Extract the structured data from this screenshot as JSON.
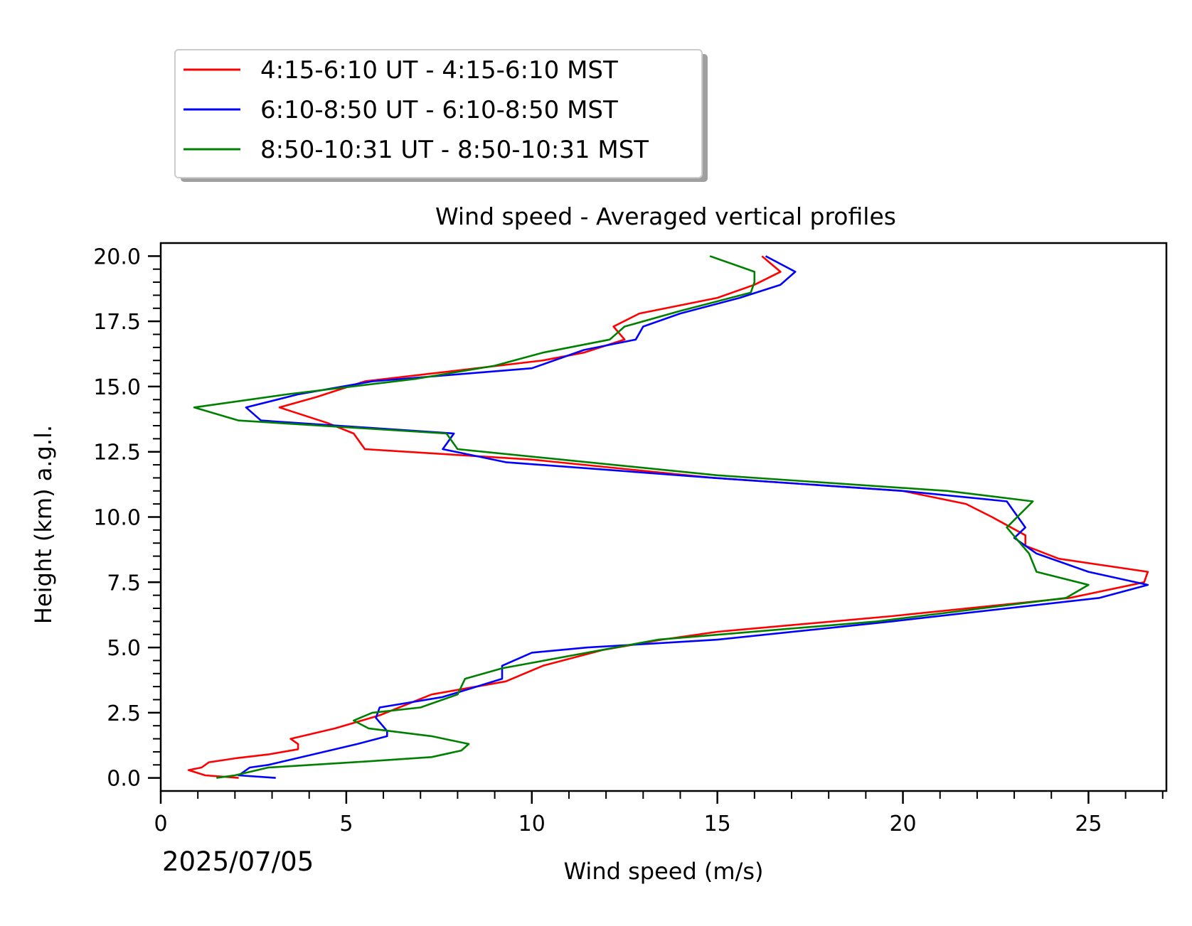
{
  "chart_data": {
    "type": "line",
    "title": "Wind speed - Averaged vertical profiles",
    "xlabel": "Wind speed (m/s)",
    "ylabel": "Height (km) a.g.l.",
    "date_label": "2025/07/05",
    "xlim": [
      0,
      27.1
    ],
    "ylim": [
      -0.5,
      20.5
    ],
    "xticks": [
      0,
      5,
      10,
      15,
      20,
      25
    ],
    "xtick_labels": [
      "0",
      "5",
      "10",
      "15",
      "20",
      "25"
    ],
    "yticks": [
      0.0,
      2.5,
      5.0,
      7.5,
      10.0,
      12.5,
      15.0,
      17.5,
      20.0
    ],
    "ytick_labels": [
      "0.0",
      "2.5",
      "5.0",
      "7.5",
      "10.0",
      "12.5",
      "15.0",
      "17.5",
      "20.0"
    ],
    "grid": false,
    "legend_position": "above-left",
    "series": [
      {
        "name": "4:15-6:10 UT - 4:15-6:10 MST",
        "color": "#ff0000",
        "points": [
          [
            2.1,
            0.0
          ],
          [
            1.2,
            0.1
          ],
          [
            0.75,
            0.3
          ],
          [
            1.1,
            0.4
          ],
          [
            1.3,
            0.6
          ],
          [
            2.0,
            0.75
          ],
          [
            2.9,
            0.9
          ],
          [
            3.7,
            1.1
          ],
          [
            3.7,
            1.3
          ],
          [
            3.5,
            1.5
          ],
          [
            4.7,
            1.9
          ],
          [
            5.9,
            2.4
          ],
          [
            7.3,
            3.2
          ],
          [
            9.3,
            3.7
          ],
          [
            10.3,
            4.3
          ],
          [
            11.9,
            4.9
          ],
          [
            13.5,
            5.3
          ],
          [
            15.0,
            5.6
          ],
          [
            19.7,
            6.2
          ],
          [
            24.5,
            6.9
          ],
          [
            26.5,
            7.5
          ],
          [
            26.6,
            7.9
          ],
          [
            24.2,
            8.4
          ],
          [
            23.3,
            8.9
          ],
          [
            23.3,
            9.3
          ],
          [
            22.4,
            10.0
          ],
          [
            21.7,
            10.5
          ],
          [
            20.0,
            11.0
          ],
          [
            14.9,
            11.5
          ],
          [
            10.0,
            12.2
          ],
          [
            5.5,
            12.6
          ],
          [
            5.2,
            13.2
          ],
          [
            4.5,
            13.6
          ],
          [
            3.2,
            14.2
          ],
          [
            4.2,
            14.6
          ],
          [
            5.5,
            15.2
          ],
          [
            10.3,
            16.0
          ],
          [
            11.4,
            16.3
          ],
          [
            12.5,
            16.8
          ],
          [
            12.2,
            17.3
          ],
          [
            12.9,
            17.8
          ],
          [
            15.0,
            18.4
          ],
          [
            16.0,
            18.9
          ],
          [
            16.7,
            19.4
          ],
          [
            16.2,
            20.0
          ]
        ]
      },
      {
        "name": "6:10-8:50 UT - 6:10-8:50 MST",
        "color": "#0000ff",
        "points": [
          [
            3.1,
            0.0
          ],
          [
            2.1,
            0.1
          ],
          [
            2.4,
            0.4
          ],
          [
            2.9,
            0.5
          ],
          [
            4.1,
            0.9
          ],
          [
            5.3,
            1.3
          ],
          [
            6.1,
            1.6
          ],
          [
            6.1,
            1.8
          ],
          [
            5.8,
            2.3
          ],
          [
            5.9,
            2.7
          ],
          [
            7.6,
            3.1
          ],
          [
            9.2,
            3.8
          ],
          [
            9.2,
            4.3
          ],
          [
            10.0,
            4.8
          ],
          [
            11.5,
            5.0
          ],
          [
            15.0,
            5.3
          ],
          [
            19.7,
            6.0
          ],
          [
            25.3,
            6.9
          ],
          [
            26.6,
            7.4
          ],
          [
            25.0,
            7.9
          ],
          [
            23.6,
            8.6
          ],
          [
            23.0,
            9.2
          ],
          [
            23.3,
            9.6
          ],
          [
            22.8,
            10.6
          ],
          [
            20.0,
            11.0
          ],
          [
            14.9,
            11.5
          ],
          [
            9.3,
            12.1
          ],
          [
            7.6,
            12.6
          ],
          [
            7.9,
            13.2
          ],
          [
            2.7,
            13.7
          ],
          [
            2.3,
            14.2
          ],
          [
            3.7,
            14.7
          ],
          [
            5.7,
            15.2
          ],
          [
            10.0,
            15.7
          ],
          [
            11.4,
            16.4
          ],
          [
            12.8,
            16.8
          ],
          [
            13.0,
            17.3
          ],
          [
            14.0,
            17.8
          ],
          [
            15.6,
            18.4
          ],
          [
            16.7,
            18.9
          ],
          [
            17.1,
            19.4
          ],
          [
            16.3,
            20.0
          ]
        ]
      },
      {
        "name": "8:50-10:31 UT - 8:50-10:31 MST",
        "color": "#008000",
        "points": [
          [
            1.5,
            0.0
          ],
          [
            2.0,
            0.1
          ],
          [
            2.9,
            0.4
          ],
          [
            5.2,
            0.6
          ],
          [
            7.3,
            0.8
          ],
          [
            8.1,
            1.05
          ],
          [
            8.3,
            1.3
          ],
          [
            7.3,
            1.6
          ],
          [
            5.6,
            1.9
          ],
          [
            5.2,
            2.2
          ],
          [
            5.7,
            2.5
          ],
          [
            7.0,
            2.7
          ],
          [
            8.0,
            3.2
          ],
          [
            8.2,
            3.8
          ],
          [
            9.2,
            4.2
          ],
          [
            13.4,
            5.3
          ],
          [
            19.3,
            6.0
          ],
          [
            24.4,
            6.9
          ],
          [
            25.0,
            7.4
          ],
          [
            23.6,
            7.9
          ],
          [
            23.4,
            8.6
          ],
          [
            22.8,
            9.6
          ],
          [
            23.5,
            10.6
          ],
          [
            21.2,
            11.0
          ],
          [
            15.0,
            11.6
          ],
          [
            8.0,
            12.6
          ],
          [
            7.7,
            13.2
          ],
          [
            2.1,
            13.7
          ],
          [
            0.9,
            14.2
          ],
          [
            3.4,
            14.7
          ],
          [
            6.9,
            15.3
          ],
          [
            9.0,
            15.8
          ],
          [
            10.3,
            16.3
          ],
          [
            12.1,
            16.8
          ],
          [
            12.5,
            17.3
          ],
          [
            14.0,
            17.9
          ],
          [
            15.9,
            18.6
          ],
          [
            16.0,
            19.0
          ],
          [
            16.0,
            19.4
          ],
          [
            14.8,
            20.0
          ]
        ]
      }
    ]
  }
}
